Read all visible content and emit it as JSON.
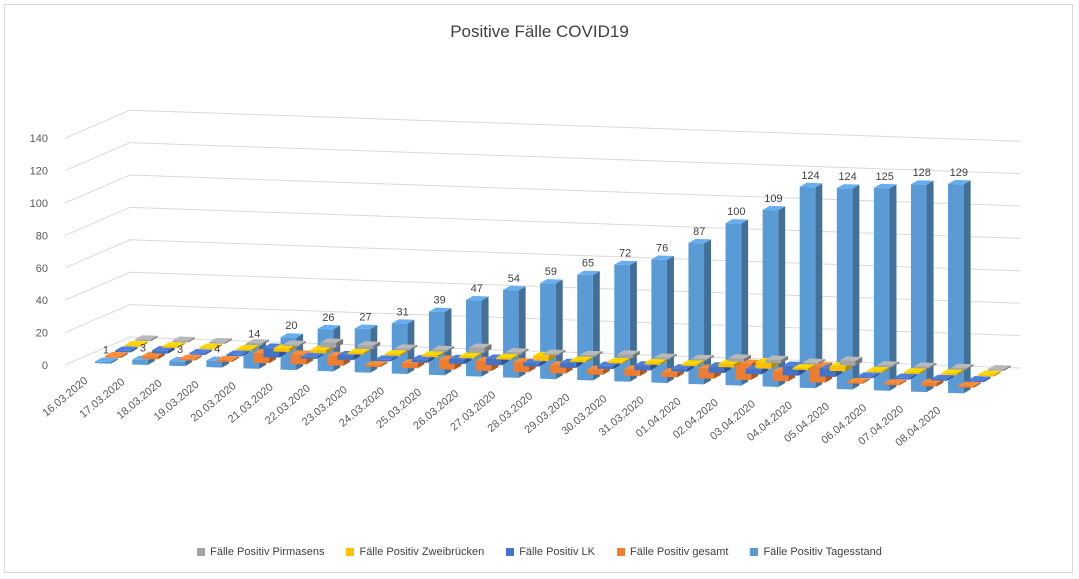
{
  "chart_data": {
    "type": "bar",
    "title": "Positive Fälle COVID19",
    "categories": [
      "16.03.2020",
      "17.03.2020",
      "18.03.2020",
      "19.03.2020",
      "20.03.2020",
      "21.03.2020",
      "22.03.2020",
      "23.03.2020",
      "24.03.2020",
      "25.03.2020",
      "26.03.2020",
      "27.03.2020",
      "28.03.2020",
      "29.03.2020",
      "30.03.2020",
      "31.03.2020",
      "01.04.2020",
      "02.04.2020",
      "03.04.2020",
      "04.04.2020",
      "05.04.2020",
      "06.04.2020",
      "07.04.2020",
      "08.04.2020"
    ],
    "y_ticks": [
      "0",
      "20",
      "40",
      "60",
      "80",
      "100",
      "120",
      "140"
    ],
    "ylim": [
      0,
      140
    ],
    "grid": true,
    "legend_position": "bottom",
    "series": [
      {
        "name": "Fälle Positiv Pirmasens",
        "color": "#a5a5a5",
        "values": [
          0,
          0,
          0,
          1,
          0,
          3,
          2,
          0,
          0,
          3,
          1,
          0,
          0,
          2,
          0,
          0,
          2,
          2,
          0,
          3,
          0,
          0,
          0,
          0
        ]
      },
      {
        "name": "Fälle Positiv Zweibrücken",
        "color": "#ffc000",
        "values": [
          0,
          0,
          0,
          0,
          2,
          2,
          0,
          0,
          1,
          0,
          1,
          3,
          0,
          0,
          1,
          1,
          2,
          4,
          1,
          3,
          0,
          0,
          1,
          0
        ]
      },
      {
        "name": "Fälle Positiv LK",
        "color": "#4472c4",
        "values": [
          1,
          2,
          0,
          0,
          6,
          1,
          3,
          1,
          2,
          3,
          4,
          2,
          3,
          2,
          3,
          2,
          4,
          3,
          6,
          5,
          0,
          1,
          1,
          1
        ]
      },
      {
        "name": "Fälle Positiv gesamt",
        "color": "#ed7d31",
        "values": [
          1,
          2,
          0,
          1,
          6,
          6,
          6,
          1,
          3,
          6,
          6,
          6,
          5,
          3,
          4,
          3,
          6,
          10,
          6,
          10,
          0,
          0,
          2,
          1
        ]
      },
      {
        "name": "Fälle Positiv Tagesstand",
        "color": "#5b9bd5",
        "values": [
          1,
          3,
          3,
          4,
          14,
          20,
          26,
          27,
          31,
          39,
          47,
          54,
          59,
          65,
          72,
          76,
          87,
          100,
          109,
          124,
          124,
          125,
          128,
          129
        ],
        "data_labels": [
          "1",
          "3",
          "3",
          "4",
          "14",
          "20",
          "26",
          "27",
          "31",
          "39",
          "47",
          "54",
          "59",
          "65",
          "72",
          "76",
          "87",
          "100",
          "109",
          "124",
          "124",
          "125",
          "128",
          "129"
        ]
      }
    ]
  }
}
